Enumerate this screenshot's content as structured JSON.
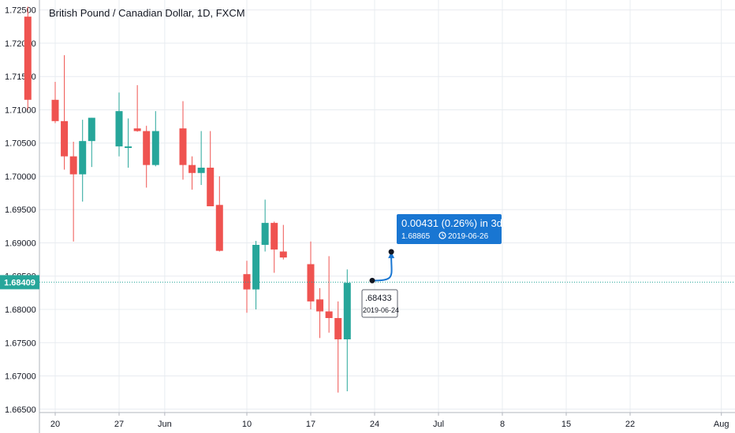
{
  "chart_data": {
    "type": "candlestick",
    "title": "British Pound / Canadian Dollar, 1D, FXCM",
    "ylim": [
      1.6645,
      1.7265
    ],
    "y_ticks": [
      1.725,
      1.72,
      1.715,
      1.71,
      1.705,
      1.7,
      1.695,
      1.69,
      1.685,
      1.68,
      1.675,
      1.67,
      1.665
    ],
    "y_tick_labels": [
      "1.72500",
      "1.72000",
      "1.71500",
      "1.71000",
      "1.70500",
      "1.70000",
      "1.69500",
      "1.69000",
      "1.68500",
      "1.68000",
      "1.67500",
      "1.67000",
      "1.66500"
    ],
    "x_ticks": [
      {
        "label": "20",
        "date": "2019-05-20"
      },
      {
        "label": "27",
        "date": "2019-05-27"
      },
      {
        "label": "Jun",
        "date": "2019-06-01"
      },
      {
        "label": "10",
        "date": "2019-06-10"
      },
      {
        "label": "17",
        "date": "2019-06-17"
      },
      {
        "label": "24",
        "date": "2019-06-24"
      },
      {
        "label": "Jul",
        "date": "2019-07-01"
      },
      {
        "label": "8",
        "date": "2019-07-08"
      },
      {
        "label": "15",
        "date": "2019-07-15"
      },
      {
        "label": "22",
        "date": "2019-07-22"
      },
      {
        "label": "Aug",
        "date": "2019-08-01"
      }
    ],
    "candles": [
      {
        "date": "2019-05-17",
        "open": 1.724,
        "high": 1.7255,
        "low": 1.71,
        "close": 1.7115
      },
      {
        "date": "2019-05-20",
        "open": 1.7115,
        "high": 1.7142,
        "low": 1.708,
        "close": 1.7083
      },
      {
        "date": "2019-05-21",
        "open": 1.7083,
        "high": 1.7182,
        "low": 1.701,
        "close": 1.703
      },
      {
        "date": "2019-05-22",
        "open": 1.703,
        "high": 1.7052,
        "low": 1.6902,
        "close": 1.7003
      },
      {
        "date": "2019-05-23",
        "open": 1.7003,
        "high": 1.7085,
        "low": 1.6962,
        "close": 1.7053
      },
      {
        "date": "2019-05-24",
        "open": 1.7053,
        "high": 1.7088,
        "low": 1.7014,
        "close": 1.7088
      },
      {
        "date": "2019-05-27",
        "open": 1.7045,
        "high": 1.7126,
        "low": 1.703,
        "close": 1.7098
      },
      {
        "date": "2019-05-28",
        "open": 1.7045,
        "high": 1.7087,
        "low": 1.7013,
        "close": 1.7045
      },
      {
        "date": "2019-05-29",
        "open": 1.7072,
        "high": 1.7137,
        "low": 1.7067,
        "close": 1.7068
      },
      {
        "date": "2019-05-30",
        "open": 1.7068,
        "high": 1.7076,
        "low": 1.6983,
        "close": 1.7017
      },
      {
        "date": "2019-05-31",
        "open": 1.7017,
        "high": 1.7098,
        "low": 1.7015,
        "close": 1.7068
      },
      {
        "date": "2019-06-03",
        "open": 1.7072,
        "high": 1.7113,
        "low": 1.6995,
        "close": 1.7017
      },
      {
        "date": "2019-06-04",
        "open": 1.7017,
        "high": 1.703,
        "low": 1.698,
        "close": 1.7005
      },
      {
        "date": "2019-06-05",
        "open": 1.7005,
        "high": 1.7068,
        "low": 1.6987,
        "close": 1.7013
      },
      {
        "date": "2019-06-06",
        "open": 1.7013,
        "high": 1.7068,
        "low": 1.6955,
        "close": 1.6955
      },
      {
        "date": "2019-06-07",
        "open": 1.6957,
        "high": 1.7,
        "low": 1.6887,
        "close": 1.6888
      },
      {
        "date": "2019-06-10",
        "open": 1.6853,
        "high": 1.6873,
        "low": 1.6795,
        "close": 1.683
      },
      {
        "date": "2019-06-11",
        "open": 1.683,
        "high": 1.6903,
        "low": 1.68,
        "close": 1.6897
      },
      {
        "date": "2019-06-12",
        "open": 1.6897,
        "high": 1.6965,
        "low": 1.6887,
        "close": 1.693
      },
      {
        "date": "2019-06-13",
        "open": 1.693,
        "high": 1.6932,
        "low": 1.6855,
        "close": 1.689
      },
      {
        "date": "2019-06-14",
        "open": 1.6887,
        "high": 1.6927,
        "low": 1.6875,
        "close": 1.6878
      },
      {
        "date": "2019-06-17",
        "open": 1.6868,
        "high": 1.6902,
        "low": 1.68,
        "close": 1.6812
      },
      {
        "date": "2019-06-18",
        "open": 1.6815,
        "high": 1.6832,
        "low": 1.6757,
        "close": 1.6797
      },
      {
        "date": "2019-06-19",
        "open": 1.6797,
        "high": 1.688,
        "low": 1.6765,
        "close": 1.6787
      },
      {
        "date": "2019-06-20",
        "open": 1.6787,
        "high": 1.6812,
        "low": 1.6675,
        "close": 1.6755
      },
      {
        "date": "2019-06-21",
        "open": 1.6755,
        "high": 1.686,
        "low": 1.6677,
        "close": 1.684
      }
    ],
    "last_price": {
      "value": 1.68409,
      "label": "1.68409",
      "color": "#26a69a"
    },
    "annotation": {
      "change_label": "0.00431 (0.26%) in 3d",
      "target_label": "1.68865",
      "target_date": "2019-06-26",
      "start_price": 1.68433,
      "start_price_label": ".68433",
      "start_date_label": "2019-06-24"
    },
    "colors": {
      "up": "#26a69a",
      "down": "#ef5350",
      "grid": "#e8ecf0",
      "text": "#131722",
      "last_line": "#26a69a",
      "annotation_bg": "#1976d2",
      "annotation_text": "#ffffff"
    },
    "grid": true
  }
}
